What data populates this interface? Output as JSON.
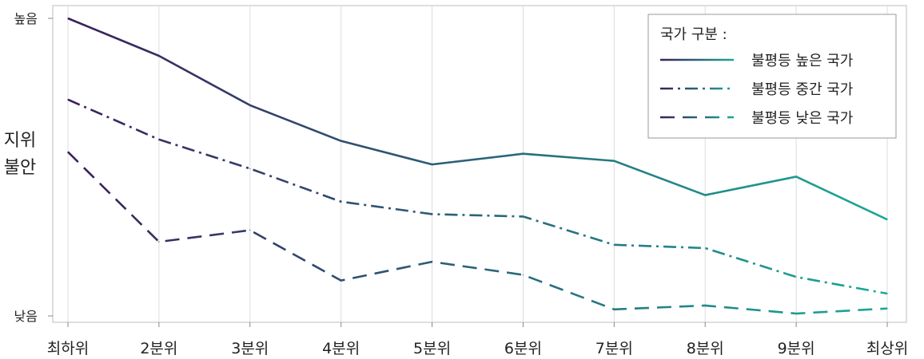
{
  "chart_data": {
    "type": "line",
    "ylabel": "지위\n불안",
    "y_tick_labels": {
      "top": "높음",
      "bottom": "낮음"
    },
    "ylim": [
      0,
      1
    ],
    "categories": [
      "최하위",
      "2분위",
      "3분위",
      "4분위",
      "5분위",
      "6분위",
      "7분위",
      "8분위",
      "9분위",
      "최상위"
    ],
    "legend": {
      "title": "국가 구분 :",
      "position": "top-right"
    },
    "gradient": {
      "start": "#3b1f5c",
      "end": "#1aa996"
    },
    "grid": {
      "vertical": true,
      "horizontal": false
    },
    "series": [
      {
        "name": "불평등 높은 국가",
        "dash": "solid",
        "values": [
          1.0,
          0.874,
          0.708,
          0.588,
          0.509,
          0.545,
          0.521,
          0.406,
          0.468,
          0.324
        ]
      },
      {
        "name": "불평등 중간 국가",
        "dash": "dashdot",
        "values": [
          0.727,
          0.593,
          0.495,
          0.384,
          0.342,
          0.334,
          0.239,
          0.228,
          0.131,
          0.075
        ]
      },
      {
        "name": "불평등 낮은 국가",
        "dash": "dashed",
        "values": [
          0.551,
          0.249,
          0.288,
          0.119,
          0.182,
          0.138,
          0.022,
          0.035,
          0.008,
          0.025
        ]
      }
    ]
  }
}
